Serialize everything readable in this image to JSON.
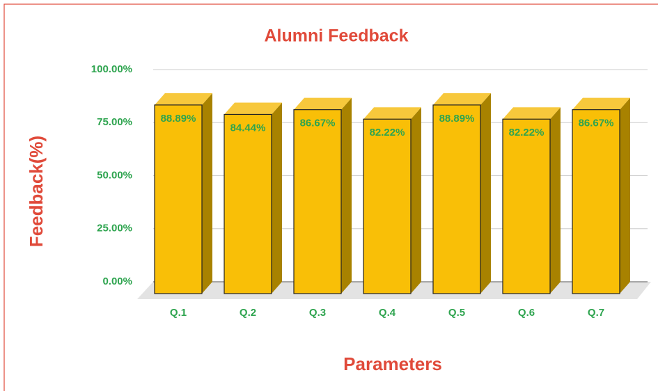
{
  "chart_data": {
    "type": "bar",
    "title": "Alumni Feedback",
    "x_label": "Parameters",
    "y_label": "Feedback(%)",
    "categories": [
      "Q.1",
      "Q.2",
      "Q.3",
      "Q.4",
      "Q.5",
      "Q.6",
      "Q.7"
    ],
    "values": [
      88.89,
      84.44,
      86.67,
      82.22,
      88.89,
      82.22,
      86.67
    ],
    "value_labels": [
      "88.89%",
      "84.44%",
      "86.67%",
      "82.22%",
      "88.89%",
      "82.22%",
      "86.67%"
    ],
    "color": "#f9bf07",
    "ylim": [
      0,
      100
    ],
    "yticks": [
      {
        "value": 0,
        "label": "0.00%"
      },
      {
        "value": 25,
        "label": "25.00%"
      },
      {
        "value": 50,
        "label": "50.00%"
      },
      {
        "value": 75,
        "label": "75.00%"
      },
      {
        "value": 100,
        "label": "100.00%"
      }
    ],
    "grid": true
  }
}
